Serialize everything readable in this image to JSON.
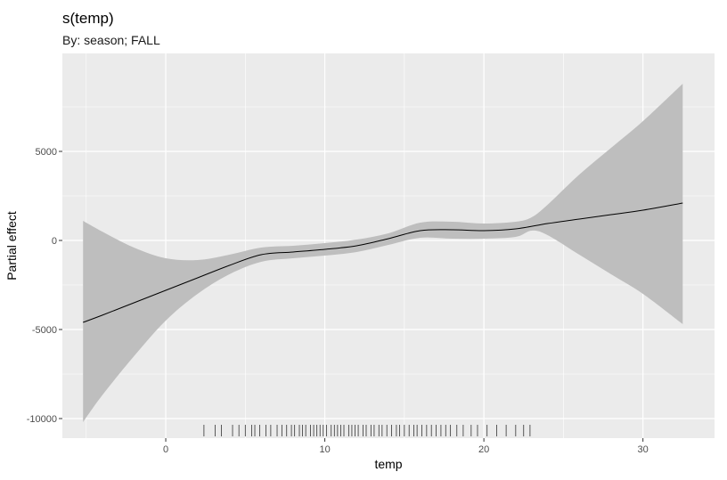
{
  "chart_data": {
    "type": "line",
    "title": "s(temp)",
    "subtitle": "By: season; FALL",
    "xlabel": "temp",
    "ylabel": "Partial effect",
    "xlim": [
      -6.5,
      34.5
    ],
    "ylim": [
      -11100,
      10500
    ],
    "x_ticks": [
      0,
      10,
      20,
      30
    ],
    "x_tick_labels": [
      "0",
      "10",
      "20",
      "30"
    ],
    "y_ticks": [
      -10000,
      -5000,
      0,
      5000
    ],
    "y_tick_labels": [
      "-10000",
      "-5000",
      "0",
      "5000"
    ],
    "grid": true,
    "series": [
      {
        "x": [
          -5.2,
          -4,
          -2,
          0,
          2,
          4,
          6,
          8,
          10,
          12,
          14,
          16,
          18,
          20,
          22,
          24,
          26,
          28,
          30,
          32.5
        ],
        "values": [
          -4600,
          -4200,
          -3500,
          -2800,
          -2100,
          -1400,
          -800,
          -650,
          -500,
          -300,
          100,
          550,
          600,
          550,
          650,
          950,
          1200,
          1450,
          1700,
          2100
        ]
      }
    ],
    "confidence_band": {
      "x": [
        -5.2,
        -4,
        -2,
        0,
        2,
        4,
        6,
        8,
        10,
        12,
        14,
        16,
        18,
        20,
        22,
        23,
        24,
        26,
        28,
        30,
        32.5
      ],
      "upper": [
        1100,
        500,
        -400,
        -1000,
        -1100,
        -800,
        -400,
        -300,
        -150,
        50,
        400,
        1000,
        1050,
        950,
        1050,
        1300,
        2000,
        3700,
        5200,
        6700,
        8800
      ],
      "lower": [
        -10200,
        -8700,
        -6500,
        -4500,
        -3000,
        -1900,
        -1200,
        -1000,
        -850,
        -650,
        -250,
        150,
        100,
        100,
        200,
        550,
        300,
        -800,
        -1900,
        -3000,
        -4700
      ]
    },
    "rug": [
      2.4,
      3.1,
      3.5,
      4.2,
      4.6,
      5.0,
      5.4,
      5.6,
      5.9,
      6.3,
      6.6,
      7.0,
      7.3,
      7.6,
      7.9,
      8.1,
      8.4,
      8.6,
      8.8,
      9.1,
      9.3,
      9.5,
      9.7,
      9.9,
      10.1,
      10.4,
      10.6,
      10.8,
      11.0,
      11.2,
      11.5,
      11.7,
      11.9,
      12.1,
      12.4,
      12.6,
      12.9,
      13.1,
      13.4,
      13.6,
      13.9,
      14.2,
      14.5,
      14.7,
      15.0,
      15.3,
      15.6,
      15.8,
      16.1,
      16.4,
      16.7,
      17.0,
      17.3,
      17.6,
      17.9,
      18.3,
      18.7,
      19.2,
      19.6,
      20.2,
      20.8,
      21.4,
      22.0,
      22.5,
      22.9
    ],
    "colors": {
      "panel": "#ebebeb",
      "grid": "#ffffff",
      "band": "#bebebe",
      "line": "#000000",
      "rug": "#333333"
    }
  }
}
